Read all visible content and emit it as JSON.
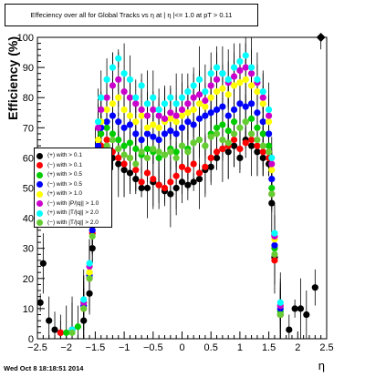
{
  "title": "Effeciency over all for Global Tracks vs  η at | η |<= 1.0 at pT > 0.11",
  "footer": "Wed Oct  8 18:18:51 2014",
  "chart_data": {
    "type": "scatter",
    "title": "Effeciency over all for Global Tracks vs  η at | η |<= 1.0 at pT > 0.11",
    "xlabel": "η",
    "ylabel": "Efficiency (%)",
    "xlim": [
      -2.5,
      2.5
    ],
    "ylim": [
      0,
      100
    ],
    "xticks": [
      "−2.5",
      "−2",
      "−1.5",
      "−1",
      "−0.5",
      "0",
      "0.5",
      "1",
      "1.5",
      "2",
      "2.5"
    ],
    "yticks": [
      "0",
      "10",
      "20",
      "30",
      "40",
      "50",
      "60",
      "70",
      "80",
      "90",
      "100"
    ],
    "legend_position": "left-middle",
    "series": [
      {
        "name": "(+) with  > 0.1",
        "color": "#000000",
        "x": [
          -2.45,
          -2.4,
          -2.3,
          -2.2,
          -2.1,
          -1.9,
          -1.7,
          -1.6,
          -1.55,
          -1.5,
          -1.45,
          -1.4,
          -1.3,
          -1.2,
          -1.1,
          -1.0,
          -0.9,
          -0.8,
          -0.7,
          -0.6,
          -0.5,
          -0.4,
          -0.3,
          -0.2,
          -0.1,
          0.0,
          0.1,
          0.2,
          0.3,
          0.4,
          0.5,
          0.6,
          0.7,
          0.8,
          0.9,
          1.0,
          1.1,
          1.2,
          1.3,
          1.4,
          1.5,
          1.55,
          1.6,
          1.7,
          1.85,
          1.95,
          2.05,
          2.15,
          2.3,
          2.4
        ],
        "y": [
          12,
          25,
          6,
          3,
          2,
          3,
          6,
          15,
          30,
          50,
          60,
          62,
          64,
          60,
          58,
          56,
          55,
          53,
          50,
          50,
          52,
          51,
          49,
          48,
          50,
          52,
          51,
          52,
          53,
          56,
          57,
          60,
          63,
          62,
          64,
          60,
          66,
          64,
          62,
          60,
          58,
          45,
          27,
          8,
          3,
          10,
          10,
          8,
          17,
          100
        ]
      },
      {
        "name": "(−) with  > 0.1",
        "color": "#ff0000",
        "x": [
          -2.1,
          -1.9,
          -1.7,
          -1.6,
          -1.55,
          -1.5,
          -1.45,
          -1.4,
          -1.3,
          -1.2,
          -1.1,
          -1.0,
          -0.9,
          -0.8,
          -0.7,
          -0.6,
          -0.5,
          -0.4,
          -0.3,
          -0.2,
          -0.1,
          0.0,
          0.1,
          0.2,
          0.3,
          0.4,
          0.5,
          0.6,
          0.7,
          0.8,
          0.9,
          1.0,
          1.1,
          1.2,
          1.3,
          1.4,
          1.5,
          1.55,
          1.6,
          1.7
        ],
        "y": [
          2,
          3,
          10,
          20,
          35,
          52,
          60,
          64,
          66,
          62,
          60,
          58,
          60,
          56,
          52,
          55,
          53,
          51,
          50,
          52,
          54,
          57,
          56,
          58,
          55,
          57,
          60,
          62,
          63,
          64,
          66,
          63,
          65,
          66,
          64,
          62,
          60,
          48,
          26,
          8
        ]
      },
      {
        "name": "(+) with  > 0.5",
        "color": "#00cc00",
        "x": [
          -2.0,
          -1.8,
          -1.7,
          -1.6,
          -1.55,
          -1.5,
          -1.45,
          -1.4,
          -1.3,
          -1.2,
          -1.1,
          -1.0,
          -0.9,
          -0.8,
          -0.7,
          -0.6,
          -0.5,
          -0.4,
          -0.3,
          -0.2,
          -0.1,
          0.0,
          0.1,
          0.2,
          0.3,
          0.4,
          0.5,
          0.6,
          0.7,
          0.8,
          0.9,
          1.0,
          1.1,
          1.2,
          1.3,
          1.4,
          1.5,
          1.55,
          1.6,
          1.7
        ],
        "y": [
          2,
          4,
          12,
          22,
          38,
          56,
          64,
          68,
          70,
          68,
          66,
          64,
          65,
          63,
          61,
          63,
          62,
          60,
          61,
          63,
          62,
          64,
          63,
          65,
          66,
          64,
          68,
          70,
          71,
          69,
          72,
          70,
          72,
          73,
          70,
          68,
          64,
          50,
          30,
          9
        ]
      },
      {
        "name": "(−) with  > 0.5",
        "color": "#0000ff",
        "x": [
          -1.9,
          -1.7,
          -1.6,
          -1.55,
          -1.5,
          -1.45,
          -1.4,
          -1.3,
          -1.2,
          -1.1,
          -1.0,
          -0.9,
          -0.8,
          -0.7,
          -0.6,
          -0.5,
          -0.4,
          -0.3,
          -0.2,
          -0.1,
          0.0,
          0.1,
          0.2,
          0.3,
          0.4,
          0.5,
          0.6,
          0.7,
          0.8,
          0.9,
          1.0,
          1.1,
          1.2,
          1.3,
          1.4,
          1.5,
          1.55,
          1.6,
          1.7
        ],
        "y": [
          3,
          11,
          21,
          36,
          55,
          64,
          70,
          72,
          74,
          72,
          70,
          71,
          68,
          66,
          68,
          67,
          66,
          68,
          69,
          68,
          70,
          72,
          71,
          73,
          74,
          75,
          76,
          77,
          74,
          76,
          78,
          77,
          78,
          75,
          72,
          68,
          53,
          31,
          10
        ]
      },
      {
        "name": "(+) with  > 1.0",
        "color": "#ffff00",
        "x": [
          -1.9,
          -1.7,
          -1.6,
          -1.55,
          -1.5,
          -1.45,
          -1.4,
          -1.3,
          -1.2,
          -1.1,
          -1.0,
          -0.9,
          -0.8,
          -0.7,
          -0.6,
          -0.5,
          -0.4,
          -0.3,
          -0.2,
          -0.1,
          0.0,
          0.1,
          0.2,
          0.3,
          0.4,
          0.5,
          0.6,
          0.7,
          0.8,
          0.9,
          1.0,
          1.1,
          1.2,
          1.3,
          1.4,
          1.5,
          1.55,
          1.6,
          1.7
        ],
        "y": [
          3,
          12,
          22,
          38,
          58,
          66,
          72,
          76,
          78,
          80,
          76,
          74,
          72,
          74,
          70,
          71,
          70,
          72,
          73,
          72,
          74,
          75,
          76,
          78,
          77,
          80,
          82,
          83,
          81,
          84,
          85,
          86,
          84,
          82,
          78,
          72,
          56,
          33,
          11
        ]
      },
      {
        "name": "(−) with |P/|q|| > 1.0",
        "color": "#cc00cc",
        "x": [
          -1.9,
          -1.7,
          -1.6,
          -1.55,
          -1.5,
          -1.45,
          -1.4,
          -1.3,
          -1.2,
          -1.1,
          -1.0,
          -0.9,
          -0.8,
          -0.7,
          -0.6,
          -0.5,
          -0.4,
          -0.3,
          -0.2,
          -0.1,
          0.0,
          0.1,
          0.2,
          0.3,
          0.4,
          0.5,
          0.6,
          0.7,
          0.8,
          0.9,
          1.0,
          1.1,
          1.2,
          1.3,
          1.4,
          1.5,
          1.55,
          1.6,
          1.7
        ],
        "y": [
          3,
          12,
          24,
          40,
          60,
          70,
          76,
          80,
          84,
          86,
          82,
          80,
          78,
          76,
          74,
          76,
          74,
          73,
          75,
          74,
          76,
          78,
          80,
          81,
          79,
          84,
          86,
          88,
          85,
          87,
          89,
          90,
          88,
          85,
          80,
          74,
          58,
          34,
          11
        ]
      },
      {
        "name": "(+) with |T/|q|| > 2.0",
        "color": "#00ffff",
        "x": [
          -1.9,
          -1.7,
          -1.6,
          -1.55,
          -1.5,
          -1.45,
          -1.4,
          -1.3,
          -1.2,
          -1.1,
          -1.0,
          -0.9,
          -0.8,
          -0.7,
          -0.6,
          -0.5,
          -0.4,
          -0.3,
          -0.2,
          -0.1,
          0.0,
          0.1,
          0.2,
          0.3,
          0.4,
          0.5,
          0.6,
          0.7,
          0.8,
          0.9,
          1.0,
          1.1,
          1.2,
          1.3,
          1.4,
          1.5,
          1.55,
          1.6,
          1.7
        ],
        "y": [
          3,
          13,
          25,
          42,
          62,
          72,
          80,
          86,
          90,
          93,
          88,
          86,
          80,
          84,
          78,
          80,
          76,
          78,
          80,
          78,
          80,
          82,
          84,
          86,
          82,
          88,
          90,
          88,
          86,
          90,
          92,
          94,
          90,
          86,
          82,
          76,
          60,
          35,
          12
        ]
      },
      {
        "name": "(−) with |T/|q|| > 2.0",
        "color": "#66cc33",
        "x": [
          -1.9,
          -1.7,
          -1.6,
          -1.55,
          -1.5,
          -1.45,
          -1.4,
          -1.3,
          -1.2,
          -1.1,
          -1.0,
          -0.9,
          -0.8,
          -0.7,
          -0.6,
          -0.5,
          -0.4,
          -0.3,
          -0.2,
          -0.1,
          0.0,
          0.1,
          0.2,
          0.3,
          0.4,
          0.5,
          0.6,
          0.7,
          0.8,
          0.9,
          1.0,
          1.1,
          1.2,
          1.3,
          1.4,
          1.5,
          1.55,
          1.6,
          1.7
        ],
        "y": [
          2,
          10,
          20,
          34,
          52,
          58,
          62,
          64,
          66,
          63,
          61,
          60,
          58,
          62,
          60,
          63,
          62,
          61,
          62,
          60,
          64,
          62,
          65,
          66,
          64,
          67,
          68,
          66,
          65,
          68,
          70,
          72,
          68,
          66,
          64,
          62,
          48,
          28,
          8
        ]
      }
    ]
  }
}
